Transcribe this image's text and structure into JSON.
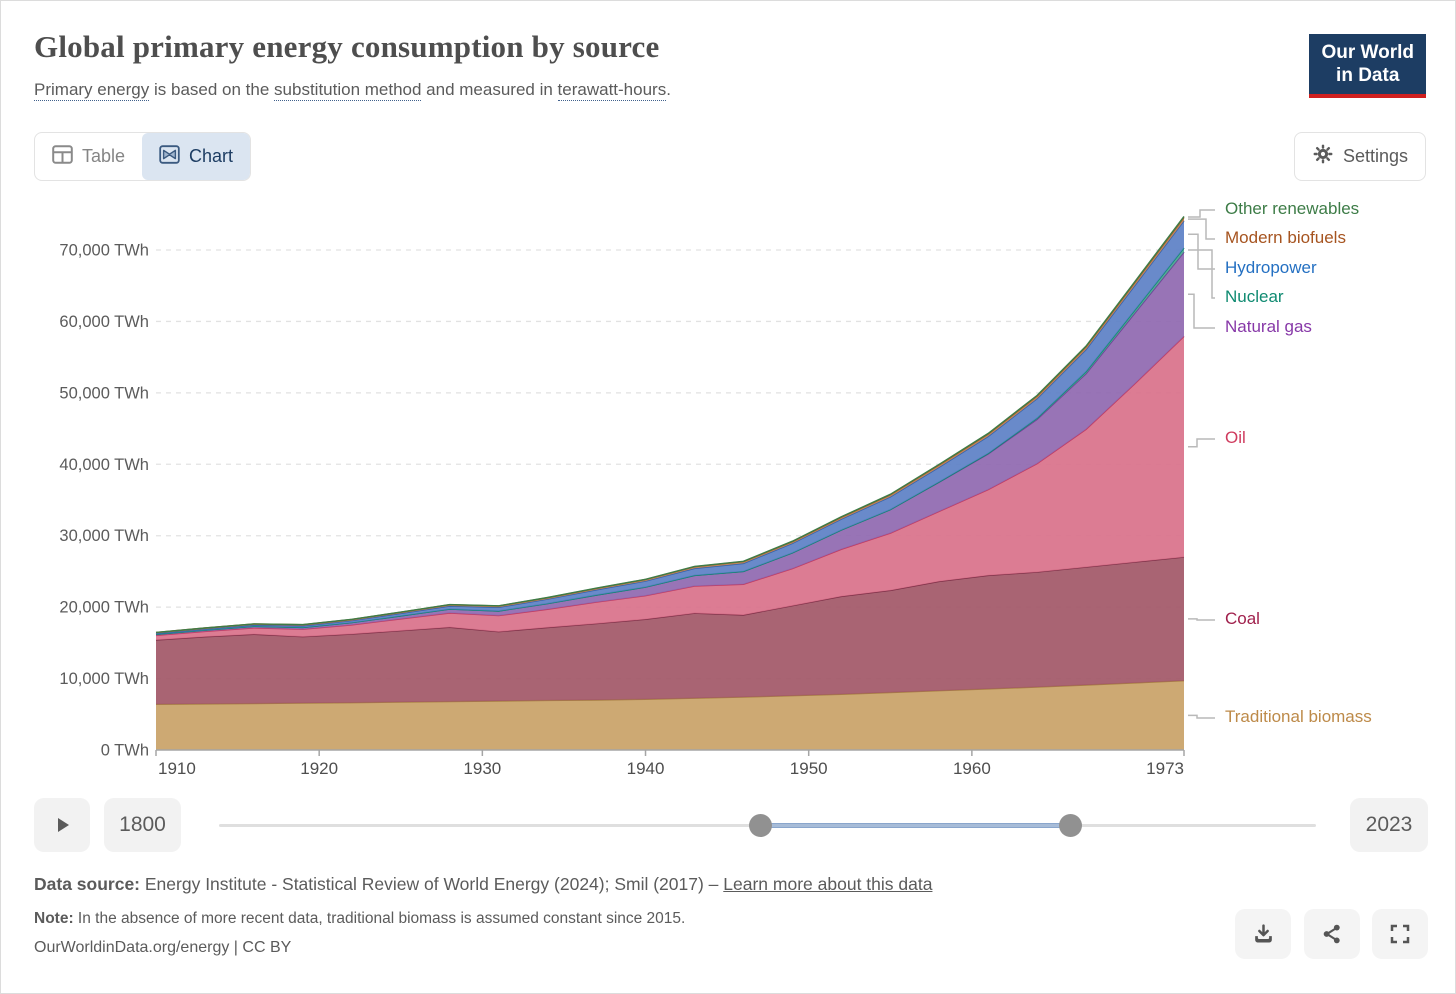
{
  "header": {
    "title": "Global primary energy consumption by source",
    "subtitle_parts": [
      {
        "text": "Primary energy",
        "underlined": true
      },
      {
        "text": " is based on the ",
        "underlined": false
      },
      {
        "text": "substitution method",
        "underlined": true
      },
      {
        "text": " and measured in ",
        "underlined": false
      },
      {
        "text": "terawatt-hours",
        "underlined": true
      },
      {
        "text": ".",
        "underlined": false
      }
    ],
    "logo_line1": "Our World",
    "logo_line2": "in Data"
  },
  "toolbar": {
    "table_label": "Table",
    "chart_label": "Chart",
    "active_tab": "Chart",
    "settings_label": "Settings"
  },
  "chart_data": {
    "type": "area",
    "stacked": true,
    "title": "Global primary energy consumption by source",
    "unit": "TWh",
    "x": [
      1910,
      1913,
      1916,
      1919,
      1922,
      1925,
      1928,
      1931,
      1934,
      1937,
      1940,
      1943,
      1946,
      1949,
      1952,
      1955,
      1958,
      1961,
      1964,
      1967,
      1970,
      1973
    ],
    "xticks": [
      1910,
      1920,
      1930,
      1940,
      1950,
      1960,
      1973
    ],
    "yticks": [
      0,
      10000,
      20000,
      30000,
      40000,
      50000,
      60000,
      70000
    ],
    "ytick_labels": [
      "0 TWh",
      "10,000 TWh",
      "20,000 TWh",
      "30,000 TWh",
      "40,000 TWh",
      "50,000 TWh",
      "60,000 TWh",
      "70,000 TWh"
    ],
    "ylim": [
      0,
      76660
    ],
    "grid": "dashed-horizontal",
    "legend_position": "right",
    "series": [
      {
        "name": "Traditional biomass",
        "color": "#bd8a49",
        "fill": "#c9a267",
        "stroke": "#a87f44",
        "values": [
          6400,
          6450,
          6500,
          6560,
          6620,
          6700,
          6780,
          6860,
          6950,
          7000,
          7100,
          7250,
          7400,
          7600,
          7800,
          8050,
          8300,
          8550,
          8800,
          9100,
          9400,
          9700
        ]
      },
      {
        "name": "Coal",
        "color": "#a0204c",
        "fill": "#a25767",
        "stroke": "#7e3048",
        "values": [
          9000,
          9400,
          9700,
          9300,
          9600,
          10000,
          10400,
          9700,
          10200,
          10700,
          11200,
          11900,
          11500,
          12600,
          13700,
          14300,
          15300,
          15900,
          16100,
          16500,
          16900,
          17300
        ]
      },
      {
        "name": "Oil",
        "color": "#cf3b5e",
        "fill": "#d9718a",
        "stroke": "#c23b61",
        "values": [
          650,
          750,
          900,
          1050,
          1300,
          1650,
          2000,
          2250,
          2550,
          3000,
          3300,
          3800,
          4300,
          5200,
          6600,
          8000,
          9800,
          12000,
          15200,
          19300,
          25000,
          30900
        ]
      },
      {
        "name": "Natural gas",
        "color": "#8738a8",
        "fill": "#8f68b0",
        "stroke": "#6d3c96",
        "values": [
          150,
          180,
          220,
          260,
          320,
          420,
          550,
          650,
          800,
          1000,
          1200,
          1500,
          1800,
          2200,
          2700,
          3300,
          4100,
          5000,
          6200,
          7800,
          9900,
          11800
        ]
      },
      {
        "name": "Nuclear",
        "color": "#0f8a71",
        "fill": "#4da293",
        "stroke": "#0c8a72",
        "values": [
          0,
          0,
          0,
          0,
          0,
          0,
          0,
          0,
          0,
          0,
          0,
          0,
          0,
          0,
          0,
          10,
          30,
          80,
          160,
          290,
          420,
          600
        ]
      },
      {
        "name": "Hydropower",
        "color": "#2470c2",
        "fill": "#5c80c6",
        "stroke": "#3060ae",
        "values": [
          120,
          150,
          180,
          220,
          280,
          350,
          430,
          520,
          620,
          730,
          850,
          980,
          1130,
          1330,
          1530,
          1780,
          2080,
          2380,
          2730,
          3080,
          3440,
          3800
        ]
      },
      {
        "name": "Modern biofuels",
        "color": "#a65420",
        "fill": "#c08656",
        "stroke": "#a65420",
        "values": [
          140,
          145,
          150,
          155,
          160,
          170,
          180,
          190,
          200,
          210,
          220,
          230,
          240,
          250,
          265,
          285,
          305,
          325,
          350,
          380,
          415,
          450
        ]
      },
      {
        "name": "Other renewables",
        "color": "#3d7c47",
        "fill": "#7aa87a",
        "stroke": "#3d7c47",
        "values": [
          5,
          6,
          8,
          10,
          12,
          15,
          18,
          22,
          26,
          30,
          35,
          40,
          46,
          52,
          60,
          68,
          78,
          90,
          102,
          116,
          132,
          150
        ]
      }
    ]
  },
  "timeline": {
    "start_label": "1800",
    "end_label": "2023",
    "min_year": 1800,
    "max_year": 2023,
    "selected_start": 1910,
    "selected_end": 1973
  },
  "footer": {
    "source_prefix": "Data source:",
    "source_text": " Energy Institute - Statistical Review of World Energy (2024); Smil (2017) – ",
    "source_link": "Learn more about this data",
    "note_prefix": "Note:",
    "note_text": " In the absence of more recent data, traditional biomass is assumed constant since 2015.",
    "cc_link": "OurWorldinData.org/energy",
    "cc_suffix": " | CC BY"
  },
  "colors": {
    "brand_navy": "#1d3d63",
    "brand_red": "#d0201f",
    "active_tab_bg": "#dbe5f1",
    "grid_line": "#e2e2e2",
    "axis_line": "#a5a5a5",
    "connector_line": "#b9b9b9",
    "slider_active": "#a7bcd8",
    "slider_handle": "#919191"
  }
}
